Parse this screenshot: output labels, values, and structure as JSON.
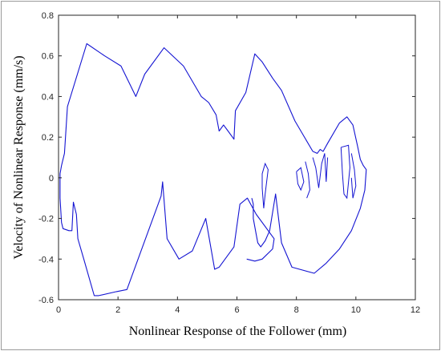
{
  "chart_data": {
    "type": "line",
    "title": "",
    "xlabel": "Nonlinear Response of the Follower (mm)",
    "ylabel": "Velocity of Nonlinear Response (mm/s)",
    "xlim": [
      0,
      12
    ],
    "ylim": [
      -0.6,
      0.8
    ],
    "xticks": [
      "0",
      "2",
      "4",
      "6",
      "8",
      "10",
      "12"
    ],
    "yticks": [
      "-0.6",
      "-0.4",
      "-0.2",
      "0",
      "0.2",
      "0.4",
      "0.6",
      "0.8"
    ],
    "grid": false,
    "legend": "none",
    "series": [
      {
        "color": "#1414d2",
        "x": [
          6.33,
          6.6,
          6.85,
          7.2,
          7.25,
          6.65,
          6.35,
          6.1,
          5.9,
          5.4,
          5.25,
          4.95,
          4.5,
          4.05,
          3.65,
          3.5,
          3.45,
          2.3,
          1.95,
          1.35,
          1.2,
          0.85,
          0.65,
          0.6,
          0.5,
          0.45,
          0.35,
          0.15,
          0.1,
          0.05,
          0.05,
          0.1,
          0.2,
          0.3,
          0.95,
          1.55,
          2.1,
          2.6,
          2.9,
          3.55,
          4.2,
          4.8,
          5.05,
          5.3,
          5.4,
          5.55,
          5.7,
          5.9,
          5.95,
          6.3,
          6.6,
          6.85,
          7.2,
          7.5,
          7.95,
          8.55,
          8.7,
          8.8,
          8.9,
          9.05,
          9.45,
          9.7,
          9.9,
          10.05,
          10.15,
          10.25,
          10.35,
          10.3,
          10.15,
          9.85,
          9.45,
          9.0,
          8.6,
          7.85,
          7.5,
          7.3,
          7.1,
          6.95,
          6.8,
          6.7,
          6.65,
          6.55,
          6.55,
          6.5
        ],
        "y": [
          -0.4,
          -0.41,
          -0.4,
          -0.35,
          -0.3,
          -0.18,
          -0.1,
          -0.13,
          -0.34,
          -0.44,
          -0.45,
          -0.2,
          -0.36,
          -0.4,
          -0.3,
          -0.02,
          -0.09,
          -0.55,
          -0.56,
          -0.58,
          -0.58,
          -0.4,
          -0.3,
          -0.18,
          -0.12,
          -0.26,
          -0.26,
          -0.25,
          -0.22,
          -0.1,
          0.02,
          0.06,
          0.12,
          0.35,
          0.66,
          0.6,
          0.55,
          0.4,
          0.51,
          0.64,
          0.55,
          0.4,
          0.37,
          0.31,
          0.23,
          0.26,
          0.23,
          0.19,
          0.33,
          0.42,
          0.61,
          0.57,
          0.49,
          0.43,
          0.28,
          0.13,
          0.12,
          0.14,
          0.13,
          0.17,
          0.27,
          0.3,
          0.26,
          0.16,
          0.09,
          0.06,
          0.04,
          -0.06,
          -0.15,
          -0.26,
          -0.35,
          -0.42,
          -0.47,
          -0.44,
          -0.32,
          -0.08,
          -0.26,
          -0.31,
          -0.34,
          -0.32,
          -0.28,
          -0.2,
          -0.13,
          -0.1
        ]
      }
    ]
  }
}
